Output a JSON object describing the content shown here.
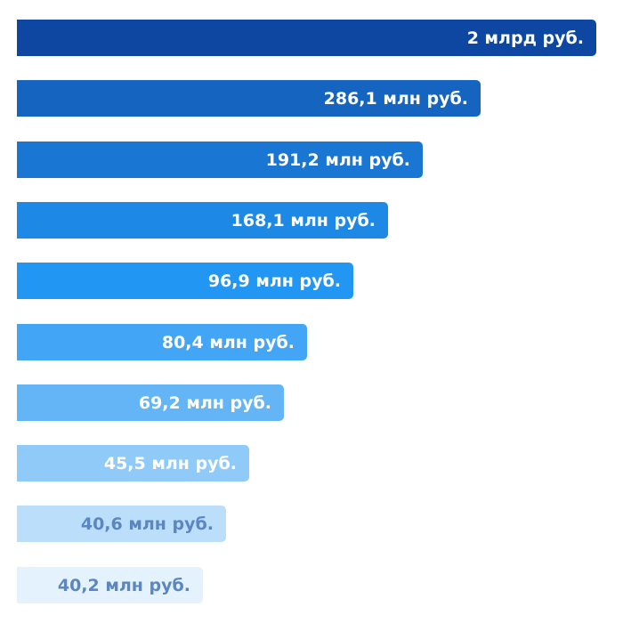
{
  "chart_data": {
    "type": "bar",
    "orientation": "horizontal",
    "title": "",
    "xlabel": "",
    "ylabel": "",
    "grid": false,
    "legend": "none",
    "unit": "млн руб.",
    "values": [
      2000,
      286.1,
      191.2,
      168.1,
      96.9,
      80.4,
      69.2,
      45.5,
      40.6,
      40.2
    ],
    "labels": [
      "2 млрд руб.",
      "286,1 млн руб.",
      "191,2 млн руб.",
      "168,1 млн руб.",
      "96,9 млн руб.",
      "80,4 млн руб.",
      "69,2 млн руб.",
      "45,5 млн руб.",
      "40,6 млн руб.",
      "40,2 млн руб."
    ],
    "colors": [
      "#0d47a1",
      "#1565c0",
      "#1976d2",
      "#1e88e5",
      "#2196f3",
      "#42a5f5",
      "#64b5f6",
      "#90caf9",
      "#bbdefb",
      "#e3f2fd"
    ],
    "label_colors": [
      "#ffffff",
      "#ffffff",
      "#ffffff",
      "#ffffff",
      "#ffffff",
      "#ffffff",
      "#ffffff",
      "#ffffff",
      "#5b86c0",
      "#5b86c0"
    ]
  }
}
